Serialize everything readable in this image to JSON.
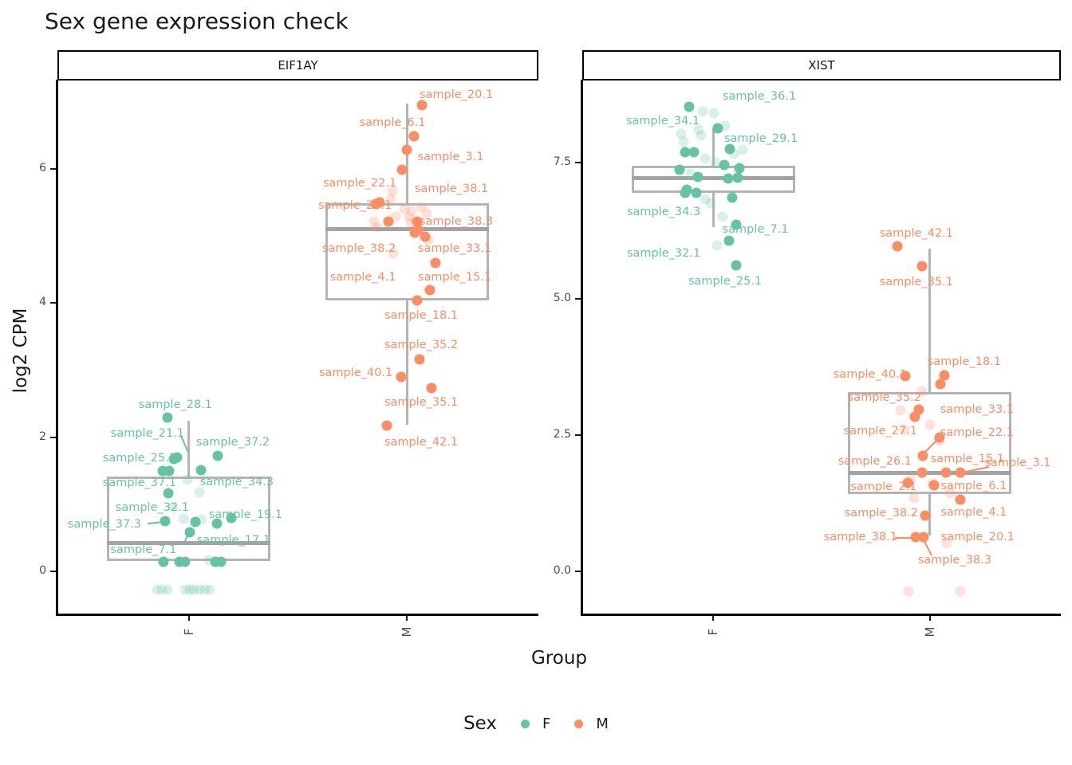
{
  "chart_data": {
    "type": "boxplot+jitter",
    "title": "Sex gene expression check",
    "xlabel": "Group",
    "ylabel": "log2 CPM",
    "x_categories": [
      "F",
      "M"
    ],
    "legend": {
      "title": "Sex",
      "items": [
        {
          "label": "F",
          "color": "#66C2A5"
        },
        {
          "label": "M",
          "color": "#FC8D62"
        }
      ]
    },
    "colors": {
      "F": "#66C2A5",
      "M": "#FC8D62",
      "box": "#b4b4b4",
      "median": "#a3a3a3",
      "axis": "#000000",
      "tick_text": "#4d4d4d"
    },
    "facets": [
      {
        "name": "EIF1AY",
        "y_ticks": [
          {
            "label": "6",
            "v": 6
          },
          {
            "label": "4",
            "v": 4
          },
          {
            "label": "2",
            "v": 2
          },
          {
            "label": "0",
            "v": 0
          }
        ],
        "boxes": {
          "F": {
            "lo": 0.12,
            "q1": 0.15,
            "med": 0.42,
            "q3": 1.41,
            "hi": 2.25
          },
          "M": {
            "lo": 2.19,
            "q1": 4.04,
            "med": 5.1,
            "q3": 5.49,
            "hi": 6.97
          }
        },
        "points": {
          "F": {
            "solid": [
              [
                2.29,
                -27
              ],
              [
                1.72,
                36
              ],
              [
                1.7,
                -15
              ],
              [
                1.67,
                -19
              ],
              [
                1.51,
                15
              ],
              [
                1.5,
                -33
              ],
              [
                1.5,
                -25
              ],
              [
                1.17,
                -26
              ],
              [
                0.8,
                53
              ],
              [
                0.75,
                -30
              ],
              [
                0.74,
                8
              ],
              [
                0.71,
                35
              ],
              [
                0.58,
                1
              ],
              [
                0.14,
                -32
              ],
              [
                0.14,
                -12
              ],
              [
                0.14,
                -5
              ],
              [
                0.14,
                33
              ],
              [
                0.14,
                40
              ]
            ],
            "faint": [
              [
                1.37,
                -2
              ],
              [
                1.18,
                13
              ],
              [
                0.95,
                -20
              ],
              [
                0.78,
                -7
              ],
              [
                0.77,
                16
              ],
              [
                0.17,
                25
              ],
              [
                -0.27,
                -40
              ],
              [
                -0.27,
                -34
              ],
              [
                -0.27,
                -27
              ],
              [
                -0.27,
                -5
              ],
              [
                -0.27,
                1
              ],
              [
                -0.27,
                6
              ],
              [
                -0.27,
                13
              ],
              [
                -0.27,
                20
              ],
              [
                -0.27,
                26
              ]
            ]
          },
          "M": {
            "solid": [
              [
                6.95,
                19
              ],
              [
                6.49,
                9
              ],
              [
                6.28,
                0
              ],
              [
                5.99,
                -6
              ],
              [
                5.5,
                -34
              ],
              [
                5.48,
                -39
              ],
              [
                5.21,
                -23
              ],
              [
                5.21,
                13
              ],
              [
                5.1,
                14
              ],
              [
                5.05,
                10
              ],
              [
                4.99,
                23
              ],
              [
                4.6,
                36
              ],
              [
                4.19,
                29
              ],
              [
                4.04,
                13
              ],
              [
                3.16,
                16
              ],
              [
                2.9,
                -7
              ],
              [
                2.73,
                31
              ],
              [
                2.17,
                -25
              ]
            ],
            "faint": [
              [
                5.67,
                -18
              ],
              [
                5.55,
                -20
              ],
              [
                5.43,
                18
              ],
              [
                5.39,
                -3
              ],
              [
                5.37,
                6
              ],
              [
                5.33,
                25
              ],
              [
                5.29,
                3
              ],
              [
                5.29,
                -14
              ],
              [
                5.21,
                -41
              ],
              [
                5.19,
                5
              ],
              [
                5.13,
                -37
              ],
              [
                4.94,
                27
              ],
              [
                4.74,
                -17
              ]
            ]
          }
        },
        "labels": [
          {
            "text": "sample_28.1",
            "g": "F",
            "v": 2.48,
            "dx": -17
          },
          {
            "text": "sample_21.1",
            "g": "F",
            "v": 2.06,
            "dx": -52
          },
          {
            "text": "sample_37.2",
            "g": "F",
            "v": 1.92,
            "dx": 55
          },
          {
            "text": "sample_25.1",
            "g": "F",
            "v": 1.69,
            "dx": -62
          },
          {
            "text": "sample_37.1",
            "g": "F",
            "v": 1.32,
            "dx": -62
          },
          {
            "text": "sample_34.3",
            "g": "F",
            "v": 1.33,
            "dx": 60
          },
          {
            "text": "sample_32.1",
            "g": "F",
            "v": 0.95,
            "dx": -46
          },
          {
            "text": "sample_37.3",
            "g": "F",
            "v": 0.7,
            "dx": -106
          },
          {
            "text": "sample_19.1",
            "g": "F",
            "v": 0.84,
            "dx": 71
          },
          {
            "text": "sample_17.1",
            "g": "F",
            "v": 0.46,
            "dx": 56
          },
          {
            "text": "sample_7.1",
            "g": "F",
            "v": 0.32,
            "dx": -57
          },
          {
            "text": "sample_20.1",
            "g": "M",
            "v": 7.1,
            "dx": 62
          },
          {
            "text": "sample_6.1",
            "g": "M",
            "v": 6.69,
            "dx": -18
          },
          {
            "text": "sample_3.1",
            "g": "M",
            "v": 6.18,
            "dx": 55
          },
          {
            "text": "sample_22.1",
            "g": "M",
            "v": 5.79,
            "dx": -59
          },
          {
            "text": "sample_26.1",
            "g": "M",
            "v": 5.45,
            "dx": -65
          },
          {
            "text": "sample_38.1",
            "g": "M",
            "v": 5.7,
            "dx": 56
          },
          {
            "text": "sample_38.3",
            "g": "M",
            "v": 5.22,
            "dx": 62
          },
          {
            "text": "sample_38.2",
            "g": "M",
            "v": 4.81,
            "dx": -60
          },
          {
            "text": "sample_33.1",
            "g": "M",
            "v": 4.81,
            "dx": 60
          },
          {
            "text": "sample_4.1",
            "g": "M",
            "v": 4.38,
            "dx": -55
          },
          {
            "text": "sample_15.1",
            "g": "M",
            "v": 4.38,
            "dx": 60
          },
          {
            "text": "sample_18.1",
            "g": "M",
            "v": 3.81,
            "dx": 18
          },
          {
            "text": "sample_35.2",
            "g": "M",
            "v": 3.37,
            "dx": 18
          },
          {
            "text": "sample_40.1",
            "g": "M",
            "v": 2.96,
            "dx": -64
          },
          {
            "text": "sample_35.1",
            "g": "M",
            "v": 2.52,
            "dx": 18
          },
          {
            "text": "sample_42.1",
            "g": "M",
            "v": 1.92,
            "dx": 18
          }
        ],
        "leaders": [
          [
            227,
            547,
            236,
            568,
            "F"
          ],
          [
            185,
            657,
            206,
            655,
            "F"
          ],
          [
            231,
            682,
            237,
            666,
            "F"
          ]
        ]
      },
      {
        "name": "XIST",
        "y_ticks": [
          {
            "label": "7.5",
            "v": 7.5
          },
          {
            "label": "5.0",
            "v": 5
          },
          {
            "label": "2.5",
            "v": 2.5
          },
          {
            "label": "0.0",
            "v": 0
          }
        ],
        "boxes": {
          "F": {
            "lo": 6.32,
            "q1": 6.95,
            "med": 7.21,
            "q3": 7.44,
            "hi": 8.14
          },
          "M": {
            "lo": 0.66,
            "q1": 1.42,
            "med": 1.8,
            "q3": 3.29,
            "hi": 5.92
          }
        },
        "points": {
          "F": {
            "solid": [
              [
                8.52,
                -30
              ],
              [
                8.13,
                6
              ],
              [
                7.75,
                21
              ],
              [
                7.69,
                -35
              ],
              [
                7.69,
                -24
              ],
              [
                7.46,
                14
              ],
              [
                7.4,
                33
              ],
              [
                7.37,
                -42
              ],
              [
                7.24,
                -19
              ],
              [
                7.22,
                31
              ],
              [
                7.21,
                19
              ],
              [
                7.0,
                -33
              ],
              [
                6.95,
                -35
              ],
              [
                6.95,
                -21
              ],
              [
                6.86,
                24
              ],
              [
                6.36,
                29
              ],
              [
                6.07,
                20
              ],
              [
                5.61,
                29
              ]
            ],
            "faint": [
              [
                8.43,
                -13
              ],
              [
                8.4,
                1
              ],
              [
                8.17,
                15
              ],
              [
                8.1,
                -18
              ],
              [
                8.02,
                -40
              ],
              [
                8.0,
                -15
              ],
              [
                7.88,
                -37
              ],
              [
                7.73,
                37
              ],
              [
                7.66,
                26
              ],
              [
                7.57,
                -10
              ],
              [
                7.5,
                3
              ],
              [
                7.3,
                -28
              ],
              [
                6.83,
                -10
              ],
              [
                6.76,
                -3
              ],
              [
                6.5,
                12
              ],
              [
                5.98,
                5
              ]
            ]
          },
          "M": {
            "solid": [
              [
                5.97,
                -41
              ],
              [
                5.6,
                -10
              ],
              [
                3.6,
                18
              ],
              [
                3.58,
                -31
              ],
              [
                3.44,
                13
              ],
              [
                2.84,
                -19
              ],
              [
                2.46,
                12
              ],
              [
                2.12,
                -9
              ],
              [
                1.81,
                -10
              ],
              [
                1.81,
                20
              ],
              [
                1.82,
                38
              ],
              [
                1.62,
                -28
              ],
              [
                1.58,
                5
              ],
              [
                1.32,
                38
              ],
              [
                1.02,
                -6
              ],
              [
                0.63,
                -18
              ],
              [
                0.63,
                -8
              ],
              [
                2.97,
                -14
              ]
            ],
            "faint": [
              [
                3.3,
                -10
              ],
              [
                2.95,
                -37
              ],
              [
                2.69,
                0
              ],
              [
                2.6,
                -32
              ],
              [
                2.4,
                12
              ],
              [
                1.7,
                -24
              ],
              [
                1.61,
                3
              ],
              [
                1.43,
                25
              ],
              [
                1.35,
                -20
              ],
              [
                0.51,
                21
              ],
              [
                -0.37,
                -27
              ],
              [
                -0.37,
                38
              ]
            ]
          }
        },
        "labels": [
          {
            "text": "sample_36.1",
            "g": "F",
            "v": 8.71,
            "dx": 58
          },
          {
            "text": "sample_34.1",
            "g": "F",
            "v": 8.26,
            "dx": -63
          },
          {
            "text": "sample_29.1",
            "g": "F",
            "v": 7.94,
            "dx": 60
          },
          {
            "text": "sample_34.3",
            "g": "F",
            "v": 6.59,
            "dx": -62
          },
          {
            "text": "sample_7.1",
            "g": "F",
            "v": 6.27,
            "dx": 53
          },
          {
            "text": "sample_32.1",
            "g": "F",
            "v": 5.83,
            "dx": -62
          },
          {
            "text": "sample_25.1",
            "g": "F",
            "v": 5.32,
            "dx": 15
          },
          {
            "text": "sample_42.1",
            "g": "M",
            "v": 6.2,
            "dx": -17
          },
          {
            "text": "sample_35.1",
            "g": "M",
            "v": 5.31,
            "dx": -17
          },
          {
            "text": "sample_18.1",
            "g": "M",
            "v": 3.85,
            "dx": 43
          },
          {
            "text": "sample_40.1",
            "g": "M",
            "v": 3.61,
            "dx": -75
          },
          {
            "text": "sample_35.2",
            "g": "M",
            "v": 3.19,
            "dx": -57
          },
          {
            "text": "sample_33.1",
            "g": "M",
            "v": 2.97,
            "dx": 59
          },
          {
            "text": "sample_27.1",
            "g": "M",
            "v": 2.57,
            "dx": -62
          },
          {
            "text": "sample_22.1",
            "g": "M",
            "v": 2.54,
            "dx": 59
          },
          {
            "text": "sample_26.1",
            "g": "M",
            "v": 2.02,
            "dx": -69
          },
          {
            "text": "sample_15.1",
            "g": "M",
            "v": 2.06,
            "dx": 47
          },
          {
            "text": "sample_3.1",
            "g": "M",
            "v": 1.99,
            "dx": 110
          },
          {
            "text": "sample_2.1",
            "g": "M",
            "v": 1.55,
            "dx": -58
          },
          {
            "text": "sample_6.1",
            "g": "M",
            "v": 1.56,
            "dx": 55
          },
          {
            "text": "sample_38.2",
            "g": "M",
            "v": 1.07,
            "dx": -61
          },
          {
            "text": "sample_4.1",
            "g": "M",
            "v": 1.08,
            "dx": 55
          },
          {
            "text": "sample_38.1",
            "g": "M",
            "v": 0.63,
            "dx": -87
          },
          {
            "text": "sample_20.1",
            "g": "M",
            "v": 0.63,
            "dx": 60
          },
          {
            "text": "sample_38.3",
            "g": "M",
            "v": 0.2,
            "dx": 31
          }
        ],
        "leaders": [
          [
            1177,
            550,
            1157,
            570,
            "M"
          ],
          [
            1240,
            586,
            1206,
            593,
            "M"
          ],
          [
            1122,
            675,
            1144,
            675,
            "M"
          ],
          [
            1168,
            697,
            1158,
            678,
            "M"
          ]
        ]
      }
    ]
  }
}
